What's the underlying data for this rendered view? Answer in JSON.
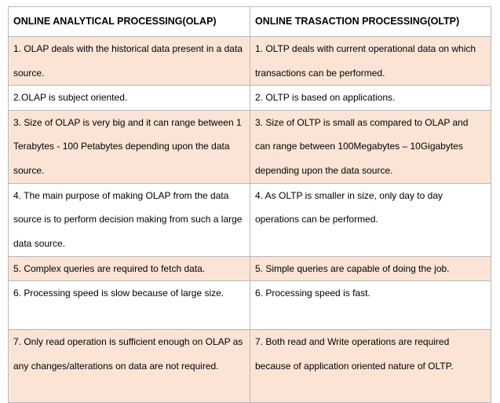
{
  "table": {
    "headers": [
      "ONLINE ANALYTICAL PROCESSING(OLAP)",
      "ONLINE TRASACTION PROCESSING(OLTP)"
    ],
    "rows": [
      {
        "olap": "1. OLAP deals with the historical data present in a data source.",
        "oltp": "1. OLTP deals with current operational data on which transactions can be performed."
      },
      {
        "olap": "2.OLAP is subject oriented.",
        "oltp": "2. OLTP is based on applications."
      },
      {
        "olap": "3. Size of OLAP is very big and it can range between 1 Terabytes - 100  Petabytes depending upon the data source.",
        "oltp": "3. Size of OLTP is small as compared to OLAP and can range between 100Megabytes – 10Gigabytes depending upon the data source."
      },
      {
        "olap": "4. The main purpose of making OLAP from the data source is to perform decision making from such a large data source.",
        "oltp": "4. As OLTP is smaller in size, only day to day operations can be performed."
      },
      {
        "olap": "5. Complex queries are required to fetch data.",
        "oltp": "5. Simple queries are capable of doing the job."
      },
      {
        "olap": "6. Processing speed is slow because of large size.",
        "oltp": "6. Processing speed is fast."
      },
      {
        "olap": "7. Only read operation is sufficient enough on OLAP as any changes/alterations on data are not required.",
        "oltp": "7. Both read and Write operations are required because of application oriented nature of OLTP."
      }
    ]
  },
  "colors": {
    "shaded_row": "#fbe4d5",
    "plain_row": "#ffffff",
    "border": "#b8b8b8"
  }
}
